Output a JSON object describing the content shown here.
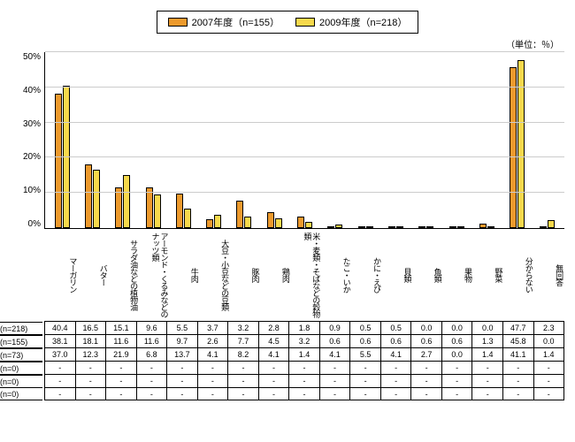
{
  "legend": {
    "series": [
      {
        "label": "2007年度（n=155）",
        "color": "#ed9a2d"
      },
      {
        "label": "2009年度（n=218）",
        "color": "#f7d94c"
      }
    ]
  },
  "unit_label": "（単位：％）",
  "chart": {
    "type": "bar",
    "ymax": 50,
    "ytick_step": 10,
    "ytick_suffix": "%",
    "grid_color": "#cccccc",
    "background_color": "#ffffff",
    "categories": [
      "マーガリン",
      "バター",
      "サラダ油などの植物油",
      "アーモンド・くるみなどのナッツ類",
      "牛肉",
      "大豆・小豆などの豆類",
      "豚肉",
      "鶏肉",
      "米・麦類・そばなどの穀物類",
      "たこ・いか",
      "かに・えび",
      "貝類",
      "魚類",
      "果物",
      "野菜",
      "分からない",
      "無回答"
    ],
    "series": [
      {
        "key": "s2007",
        "color": "#ed9a2d",
        "values": [
          38.1,
          18.1,
          11.6,
          11.6,
          9.7,
          2.6,
          7.7,
          4.5,
          3.2,
          0.6,
          0.6,
          0.6,
          0.6,
          0.6,
          1.3,
          45.8,
          0.0
        ]
      },
      {
        "key": "s2009",
        "color": "#f7d94c",
        "values": [
          40.4,
          16.5,
          15.1,
          9.6,
          5.5,
          3.7,
          3.2,
          2.8,
          1.8,
          0.9,
          0.5,
          0.5,
          0.0,
          0.0,
          0.0,
          47.7,
          2.3
        ]
      }
    ]
  },
  "table": {
    "rows": [
      {
        "label": "2009年度(n=218)",
        "cells": [
          "40.4",
          "16.5",
          "15.1",
          "9.6",
          "5.5",
          "3.7",
          "3.2",
          "2.8",
          "1.8",
          "0.9",
          "0.5",
          "0.5",
          "0.0",
          "0.0",
          "0.0",
          "47.7",
          "2.3"
        ]
      },
      {
        "label": "2007年度(n=155)",
        "cells": [
          "38.1",
          "18.1",
          "11.6",
          "11.6",
          "9.7",
          "2.6",
          "7.7",
          "4.5",
          "3.2",
          "0.6",
          "0.6",
          "0.6",
          "0.6",
          "0.6",
          "1.3",
          "45.8",
          "0.0"
        ]
      },
      {
        "label": "2005年度(n=73)",
        "cells": [
          "37.0",
          "12.3",
          "21.9",
          "6.8",
          "13.7",
          "4.1",
          "8.2",
          "4.1",
          "1.4",
          "4.1",
          "5.5",
          "4.1",
          "2.7",
          "0.0",
          "1.4",
          "41.1",
          "1.4"
        ]
      },
      {
        "label": "2003年度(n=0)",
        "cells": [
          "-",
          "-",
          "-",
          "-",
          "-",
          "-",
          "-",
          "-",
          "-",
          "-",
          "-",
          "-",
          "-",
          "-",
          "-",
          "-",
          "-"
        ]
      },
      {
        "label": "2002年度(n=0)",
        "cells": [
          "-",
          "-",
          "-",
          "-",
          "-",
          "-",
          "-",
          "-",
          "-",
          "-",
          "-",
          "-",
          "-",
          "-",
          "-",
          "-",
          "-"
        ]
      },
      {
        "label": "2000年度(n=0)",
        "cells": [
          "-",
          "-",
          "-",
          "-",
          "-",
          "-",
          "-",
          "-",
          "-",
          "-",
          "-",
          "-",
          "-",
          "-",
          "-",
          "-",
          "-"
        ]
      }
    ]
  }
}
